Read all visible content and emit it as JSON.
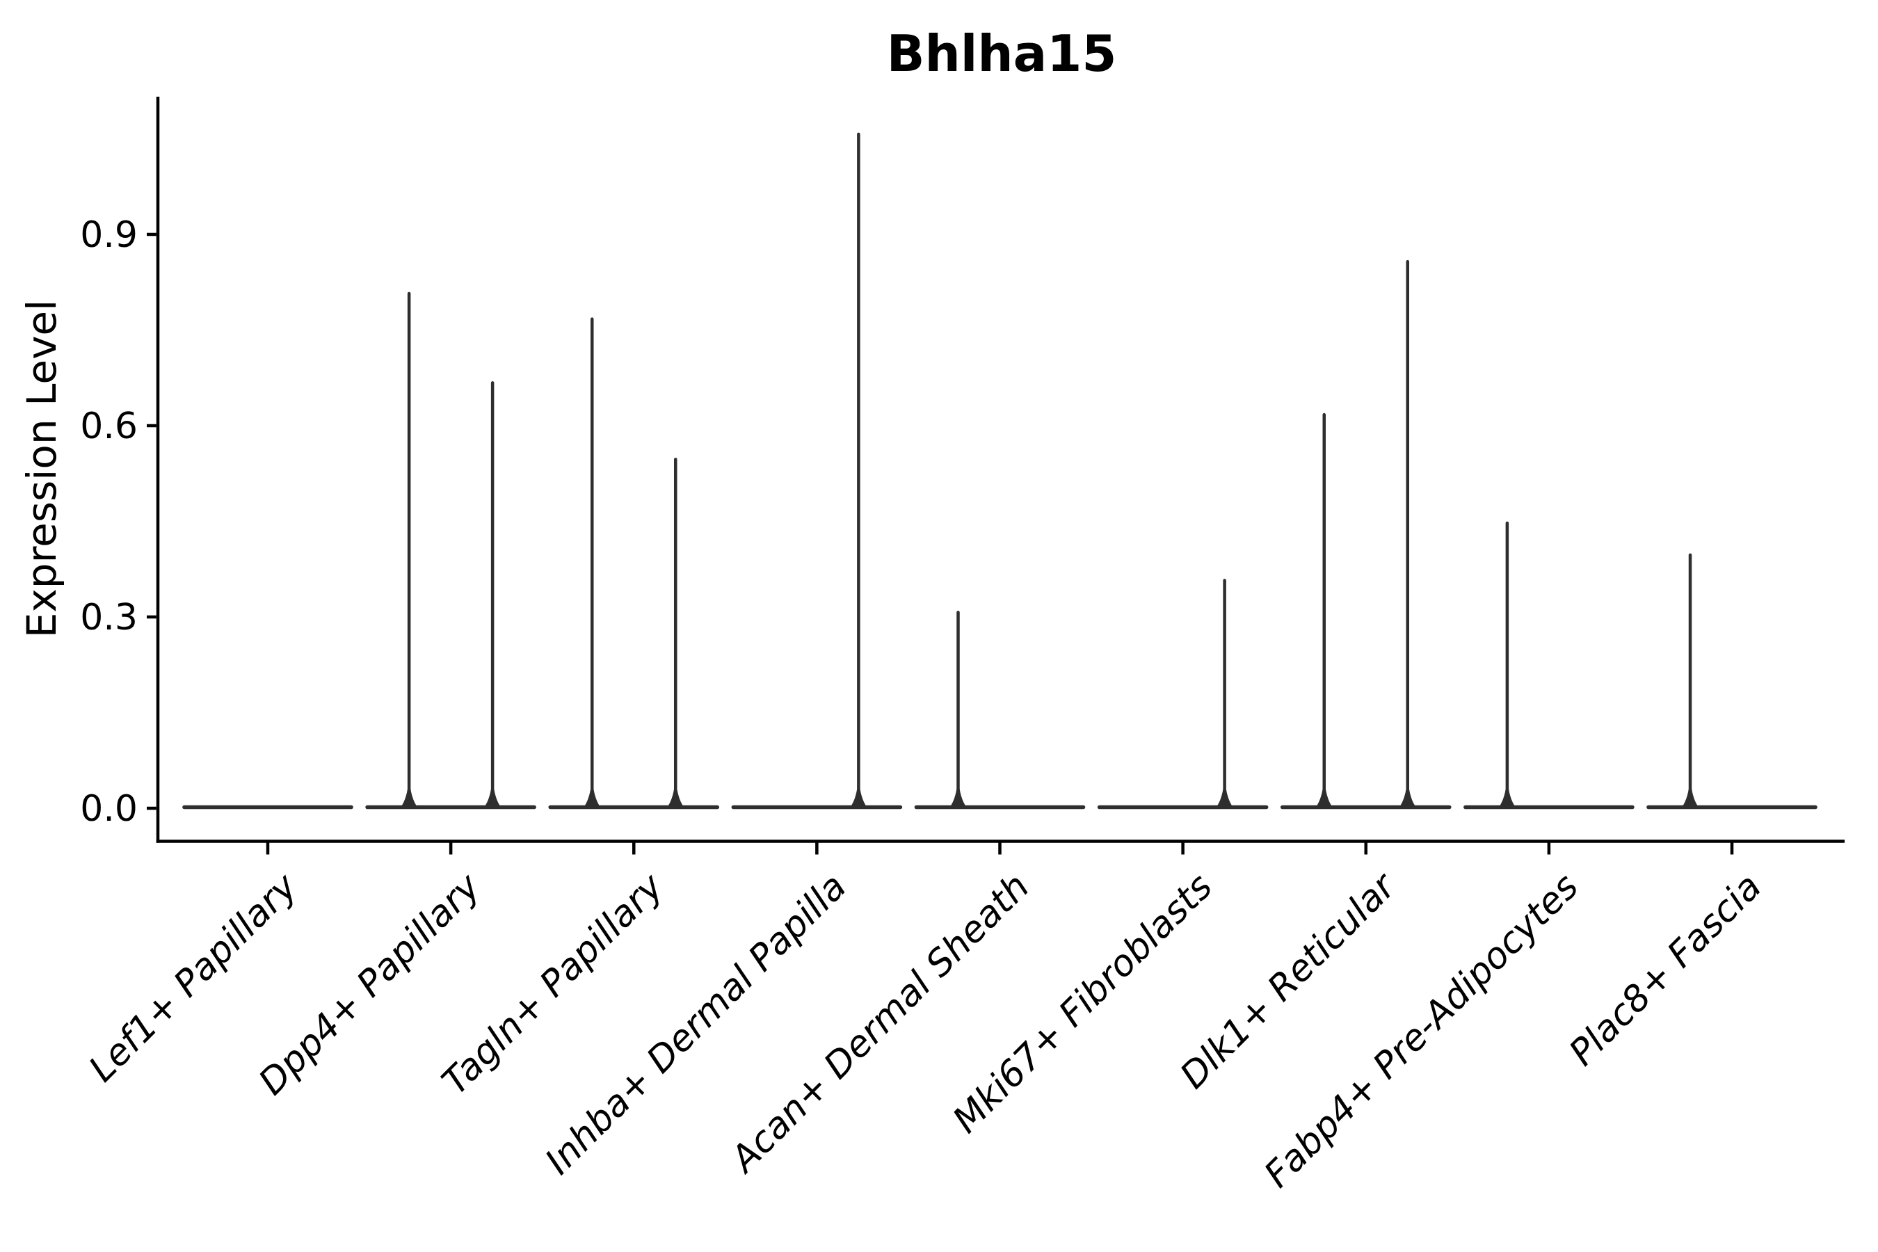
{
  "chart_data": {
    "type": "violin",
    "title": "Bhlha15",
    "ylabel": "Expression Level",
    "xlabel": "",
    "ytick_values": [
      0.0,
      0.3,
      0.6,
      0.9
    ],
    "ytick_labels": [
      "0.0",
      "0.3",
      "0.6",
      "0.9"
    ],
    "ylim": [
      -0.05,
      1.12
    ],
    "grid": false,
    "legend": "none",
    "x_label_rotation_deg": 45,
    "x_labels_italic": true,
    "categories": [
      "Lef1+ Papillary",
      "Dpp4+ Papillary",
      "Tagln+ Papillary",
      "Inhba+ Dermal Papilla",
      "Acan+ Dermal Sheath",
      "Mki67+ Fibroblasts",
      "Dlk1+ Reticular",
      "Fabp4+ Pre-Adipocytes",
      "Plac8+ Fascia"
    ],
    "violins": [
      {
        "category": "Lef1+ Papillary",
        "left_max": 0,
        "right_max": 0
      },
      {
        "category": "Dpp4+ Papillary",
        "left_max": 0.81,
        "right_max": 0.67
      },
      {
        "category": "Tagln+ Papillary",
        "left_max": 0.77,
        "right_max": 0.55
      },
      {
        "category": "Inhba+ Dermal Papilla",
        "left_max": 0,
        "right_max": 1.06
      },
      {
        "category": "Acan+ Dermal Sheath",
        "left_max": 0.31,
        "right_max": 0
      },
      {
        "category": "Mki67+ Fibroblasts",
        "left_max": 0,
        "right_max": 0.36
      },
      {
        "category": "Dlk1+ Reticular",
        "left_max": 0.62,
        "right_max": 0.86
      },
      {
        "category": "Fabp4+ Pre-Adipocytes",
        "left_max": 0.45,
        "right_max": 0
      },
      {
        "category": "Plac8+ Fascia",
        "left_max": 0.4,
        "right_max": 0
      }
    ],
    "colors": {
      "violin_stroke": "#2e2e2e",
      "axis": "#000000",
      "text": "#000000",
      "background": "#ffffff"
    }
  }
}
